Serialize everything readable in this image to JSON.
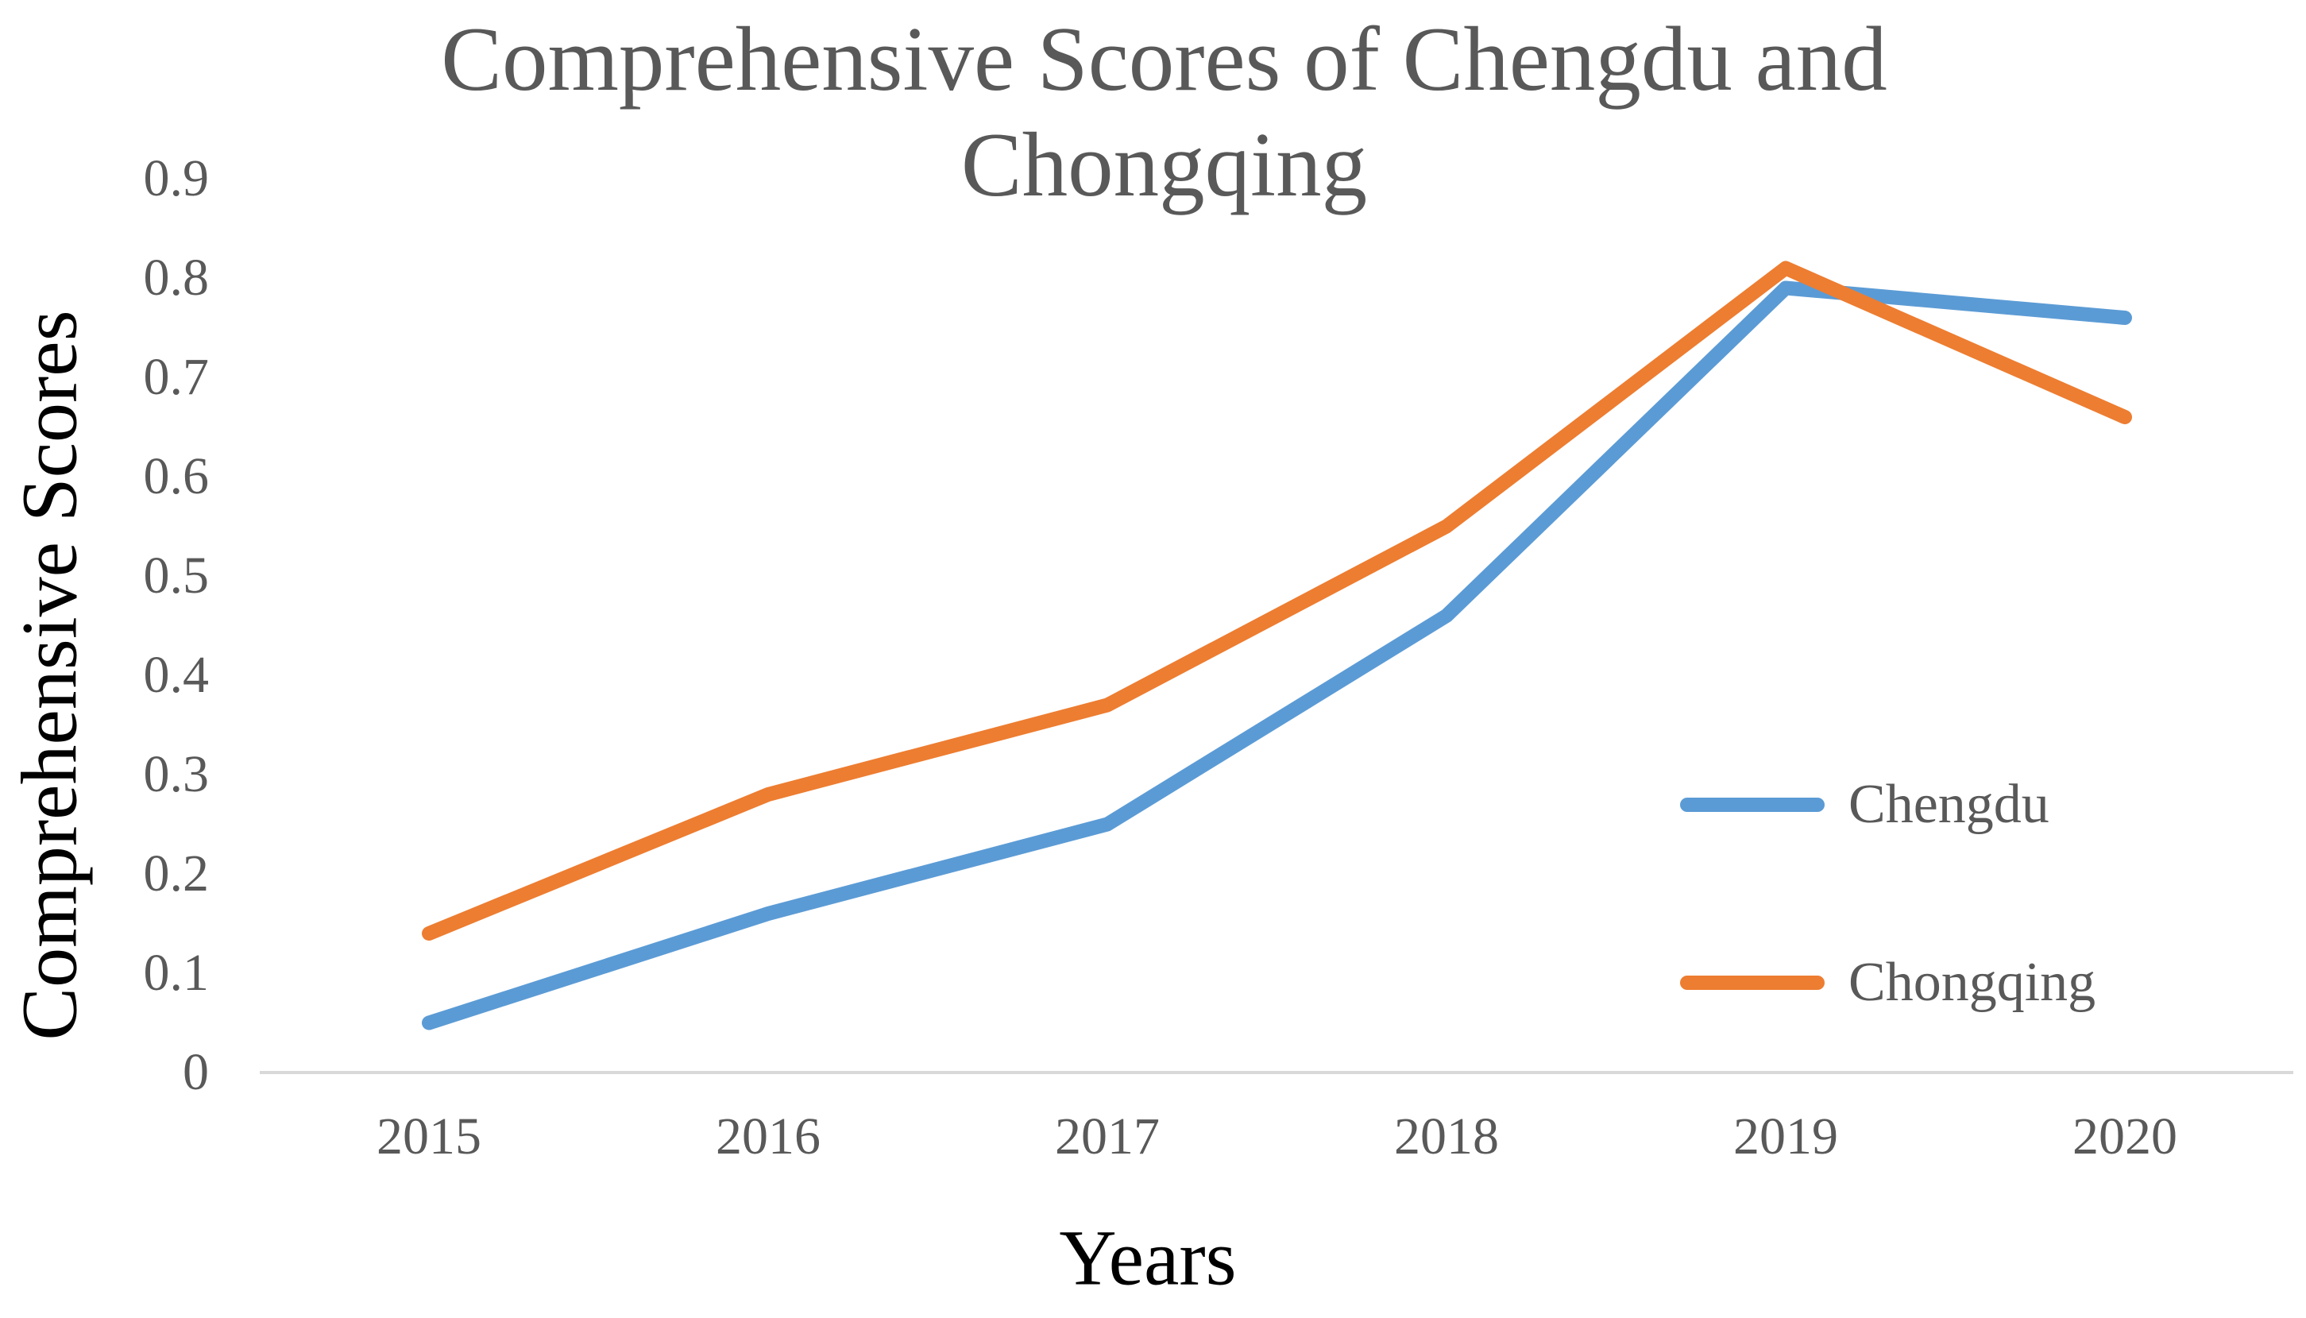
{
  "title": {
    "line1": "Comprehensive Scores of Chengdu and",
    "line2": "Chongqing"
  },
  "axes": {
    "x_title": "Years",
    "y_title": "Comprehensive Scores"
  },
  "legend": {
    "items": [
      {
        "label": "Chengdu",
        "color": "#5B9BD5"
      },
      {
        "label": "Chongqing",
        "color": "#ED7D31"
      }
    ]
  },
  "chart_data": {
    "type": "line",
    "title": "Comprehensive Scores of Chengdu and Chongqing",
    "xlabel": "Years",
    "ylabel": "Comprehensive Scores",
    "categories": [
      "2015",
      "2016",
      "2017",
      "2018",
      "2019",
      "2020"
    ],
    "series": [
      {
        "name": "Chengdu",
        "color": "#5B9BD5",
        "values": [
          0.05,
          0.16,
          0.25,
          0.46,
          0.79,
          0.76
        ]
      },
      {
        "name": "Chongqing",
        "color": "#ED7D31",
        "values": [
          0.14,
          0.28,
          0.37,
          0.55,
          0.81,
          0.66
        ]
      }
    ],
    "ylim": [
      0,
      0.9
    ],
    "yticks": [
      0,
      0.1,
      0.2,
      0.3,
      0.4,
      0.5,
      0.6,
      0.7,
      0.8,
      0.9
    ],
    "ytick_labels": [
      "0",
      "0.1",
      "0.2",
      "0.3",
      "0.4",
      "0.5",
      "0.6",
      "0.7",
      "0.8",
      "0.9"
    ],
    "grid": false,
    "legend_position": "inside-right"
  },
  "colors": {
    "axis_line": "#D9D9D9",
    "tick_text": "#595959",
    "title_text": "#595959",
    "axis_title_text": "#000000",
    "legend_text": "#595959"
  }
}
